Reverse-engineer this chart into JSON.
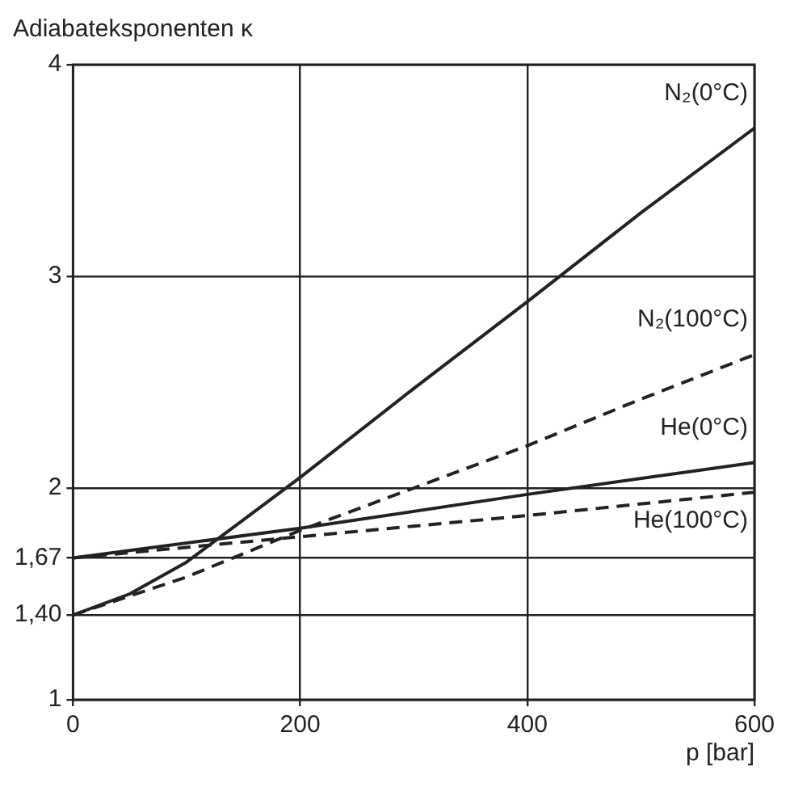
{
  "chart_data": {
    "type": "line",
    "ylabel": "Adiabateksponenten κ",
    "xlabel": "p [bar]",
    "xlim": [
      0,
      600
    ],
    "xticks": [
      0,
      200,
      400,
      600
    ],
    "ylim": [
      1,
      4
    ],
    "yticks": [
      1,
      {
        "value": 1.4,
        "label": "1,40"
      },
      {
        "value": 1.67,
        "label": "1,67"
      },
      2,
      3,
      4
    ],
    "grid": true,
    "legend": false,
    "marker": "none",
    "series": [
      {
        "name": "N₂(0°C)",
        "color": "#222222",
        "line_style": "solid",
        "x": [
          0,
          50,
          100,
          150,
          200,
          300,
          400,
          500,
          600
        ],
        "values": [
          1.4,
          1.5,
          1.65,
          1.85,
          2.05,
          2.47,
          2.88,
          3.3,
          3.7
        ]
      },
      {
        "name": "N₂(100°C)",
        "color": "#222222",
        "line_style": "dashed",
        "x": [
          0,
          100,
          200,
          300,
          400,
          500,
          600
        ],
        "values": [
          1.4,
          1.58,
          1.8,
          2.0,
          2.2,
          2.42,
          2.63
        ]
      },
      {
        "name": "He(0°C)",
        "color": "#222222",
        "line_style": "solid",
        "x": [
          0,
          200,
          400,
          600
        ],
        "values": [
          1.67,
          1.81,
          1.97,
          2.12
        ]
      },
      {
        "name": "He(100°C)",
        "color": "#222222",
        "line_style": "dashed",
        "x": [
          0,
          200,
          400,
          600
        ],
        "values": [
          1.67,
          1.77,
          1.87,
          1.98
        ]
      }
    ]
  }
}
